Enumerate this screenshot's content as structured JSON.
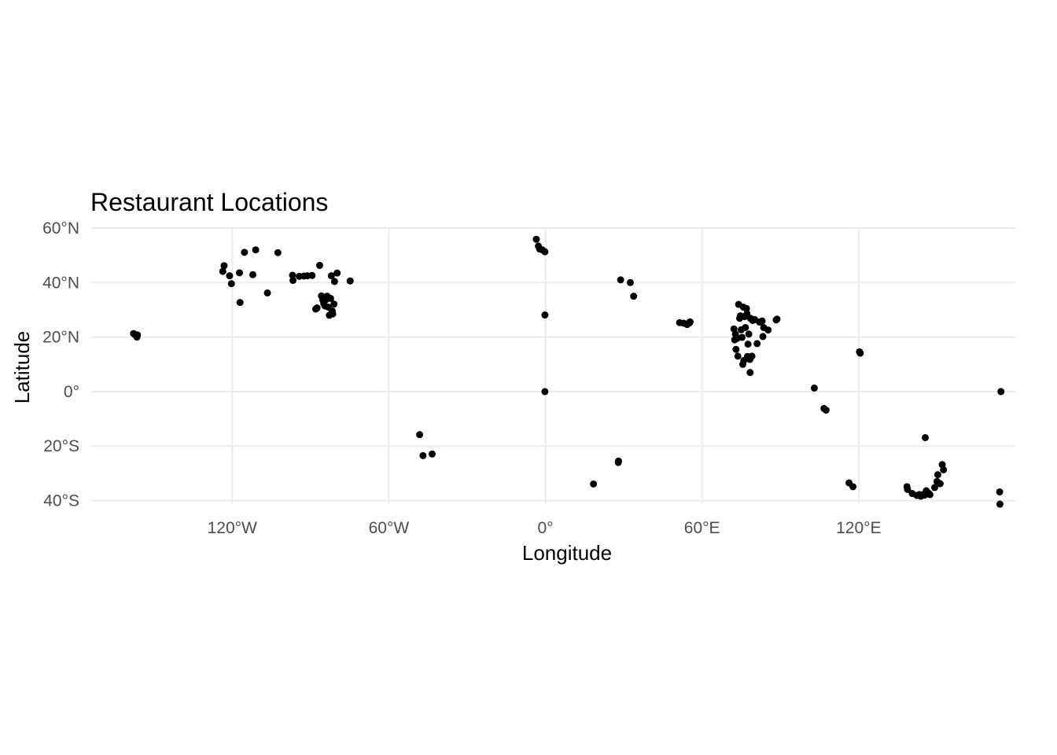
{
  "chart_data": {
    "type": "scatter",
    "title": "Restaurant Locations",
    "xlabel": "Longitude",
    "ylabel": "Latitude",
    "xlim": [
      -174,
      180
    ],
    "ylim": [
      -41,
      60
    ],
    "x_ticks": [
      {
        "value": -120,
        "label": "120°W"
      },
      {
        "value": -60,
        "label": "60°W"
      },
      {
        "value": 0,
        "label": "0°"
      },
      {
        "value": 60,
        "label": "60°E"
      },
      {
        "value": 120,
        "label": "120°E"
      }
    ],
    "y_ticks": [
      {
        "value": 60,
        "label": "60°N"
      },
      {
        "value": 40,
        "label": "40°N"
      },
      {
        "value": 20,
        "label": "20°N"
      },
      {
        "value": 0,
        "label": "0°"
      },
      {
        "value": -20,
        "label": "20°S"
      },
      {
        "value": -40,
        "label": "40°S"
      }
    ],
    "grid": true,
    "legend": "none",
    "point_color": "#000000",
    "points": [
      [
        -157.8,
        21.3
      ],
      [
        -157.4,
        21.0
      ],
      [
        -156.5,
        20.0
      ],
      [
        -156.3,
        20.8
      ],
      [
        -123.1,
        46.2
      ],
      [
        -123.6,
        44.1
      ],
      [
        -121.0,
        42.5
      ],
      [
        -120.3,
        39.6
      ],
      [
        -117.2,
        43.6
      ],
      [
        -117.0,
        32.7
      ],
      [
        -115.3,
        51.1
      ],
      [
        -112.1,
        42.9
      ],
      [
        -111.0,
        52.0
      ],
      [
        -106.5,
        36.2
      ],
      [
        -102.5,
        51.0
      ],
      [
        -96.9,
        42.7
      ],
      [
        -96.7,
        40.8
      ],
      [
        -94.3,
        42.3
      ],
      [
        -92.5,
        42.4
      ],
      [
        -91.2,
        42.5
      ],
      [
        -89.4,
        42.6
      ],
      [
        -88.0,
        30.3
      ],
      [
        -87.5,
        30.7
      ],
      [
        -86.5,
        46.3
      ],
      [
        -85.8,
        35.1
      ],
      [
        -85.3,
        33.6
      ],
      [
        -84.9,
        32.2
      ],
      [
        -84.4,
        31.4
      ],
      [
        -84.0,
        33.8
      ],
      [
        -83.6,
        35.0
      ],
      [
        -83.2,
        31.0
      ],
      [
        -82.8,
        28.0
      ],
      [
        -82.3,
        34.2
      ],
      [
        -82.0,
        42.5
      ],
      [
        -81.7,
        29.6
      ],
      [
        -81.5,
        28.5
      ],
      [
        -81.0,
        32.1
      ],
      [
        -80.8,
        40.4
      ],
      [
        -79.8,
        43.5
      ],
      [
        -74.8,
        40.6
      ],
      [
        -48.2,
        -15.8
      ],
      [
        -46.9,
        -23.5
      ],
      [
        -43.4,
        -22.9
      ],
      [
        -3.5,
        55.9
      ],
      [
        -2.7,
        53.4
      ],
      [
        -2.2,
        52.3
      ],
      [
        -1.2,
        52.0
      ],
      [
        -0.2,
        51.3
      ],
      [
        -0.2,
        28.1
      ],
      [
        -0.2,
        0.0
      ],
      [
        18.4,
        -33.9
      ],
      [
        27.9,
        -26.0
      ],
      [
        28.0,
        -25.5
      ],
      [
        28.8,
        41.0
      ],
      [
        32.5,
        40.0
      ],
      [
        33.8,
        35.0
      ],
      [
        51.4,
        25.3
      ],
      [
        53.0,
        25.1
      ],
      [
        54.3,
        24.6
      ],
      [
        55.2,
        25.2
      ],
      [
        55.4,
        25.6
      ],
      [
        72.2,
        23.0
      ],
      [
        72.5,
        19.0
      ],
      [
        72.8,
        21.1
      ],
      [
        73.0,
        15.5
      ],
      [
        73.4,
        19.5
      ],
      [
        73.7,
        13.0
      ],
      [
        74.0,
        32.0
      ],
      [
        74.4,
        26.9
      ],
      [
        74.7,
        27.8
      ],
      [
        75.0,
        22.7
      ],
      [
        75.3,
        19.9
      ],
      [
        75.6,
        10.0
      ],
      [
        75.8,
        31.0
      ],
      [
        76.0,
        11.4
      ],
      [
        76.3,
        27.5
      ],
      [
        76.6,
        23.5
      ],
      [
        77.0,
        30.5
      ],
      [
        77.2,
        28.6
      ],
      [
        77.4,
        12.9
      ],
      [
        77.6,
        17.4
      ],
      [
        77.9,
        21.1
      ],
      [
        78.3,
        11.8
      ],
      [
        78.4,
        7.0
      ],
      [
        78.5,
        26.9
      ],
      [
        79.1,
        13.0
      ],
      [
        79.4,
        26.1
      ],
      [
        80.2,
        26.4
      ],
      [
        81.1,
        17.6
      ],
      [
        82.0,
        25.5
      ],
      [
        83.0,
        25.9
      ],
      [
        83.3,
        20.2
      ],
      [
        83.6,
        23.5
      ],
      [
        85.3,
        22.6
      ],
      [
        88.4,
        26.3
      ],
      [
        88.7,
        26.6
      ],
      [
        103.0,
        1.3
      ],
      [
        106.7,
        -6.2
      ],
      [
        107.5,
        -6.8
      ],
      [
        116.3,
        -33.5
      ],
      [
        117.8,
        -34.9
      ],
      [
        120.3,
        14.6
      ],
      [
        120.6,
        14.1
      ],
      [
        138.5,
        -34.9
      ],
      [
        138.7,
        -35.9
      ],
      [
        140.5,
        -37.4
      ],
      [
        142.3,
        -38.1
      ],
      [
        143.2,
        -37.8
      ],
      [
        143.8,
        -38.4
      ],
      [
        144.6,
        -37.8
      ],
      [
        145.2,
        -38.0
      ],
      [
        145.5,
        -16.9
      ],
      [
        145.9,
        -36.4
      ],
      [
        146.8,
        -37.3
      ],
      [
        147.3,
        -37.8
      ],
      [
        149.1,
        -35.2
      ],
      [
        150.0,
        -33.0
      ],
      [
        150.3,
        -30.5
      ],
      [
        151.2,
        -33.8
      ],
      [
        152.0,
        -26.8
      ],
      [
        152.5,
        -28.7
      ],
      [
        174.5,
        0.0
      ],
      [
        174.0,
        -36.8
      ],
      [
        174.1,
        -41.3
      ]
    ]
  }
}
